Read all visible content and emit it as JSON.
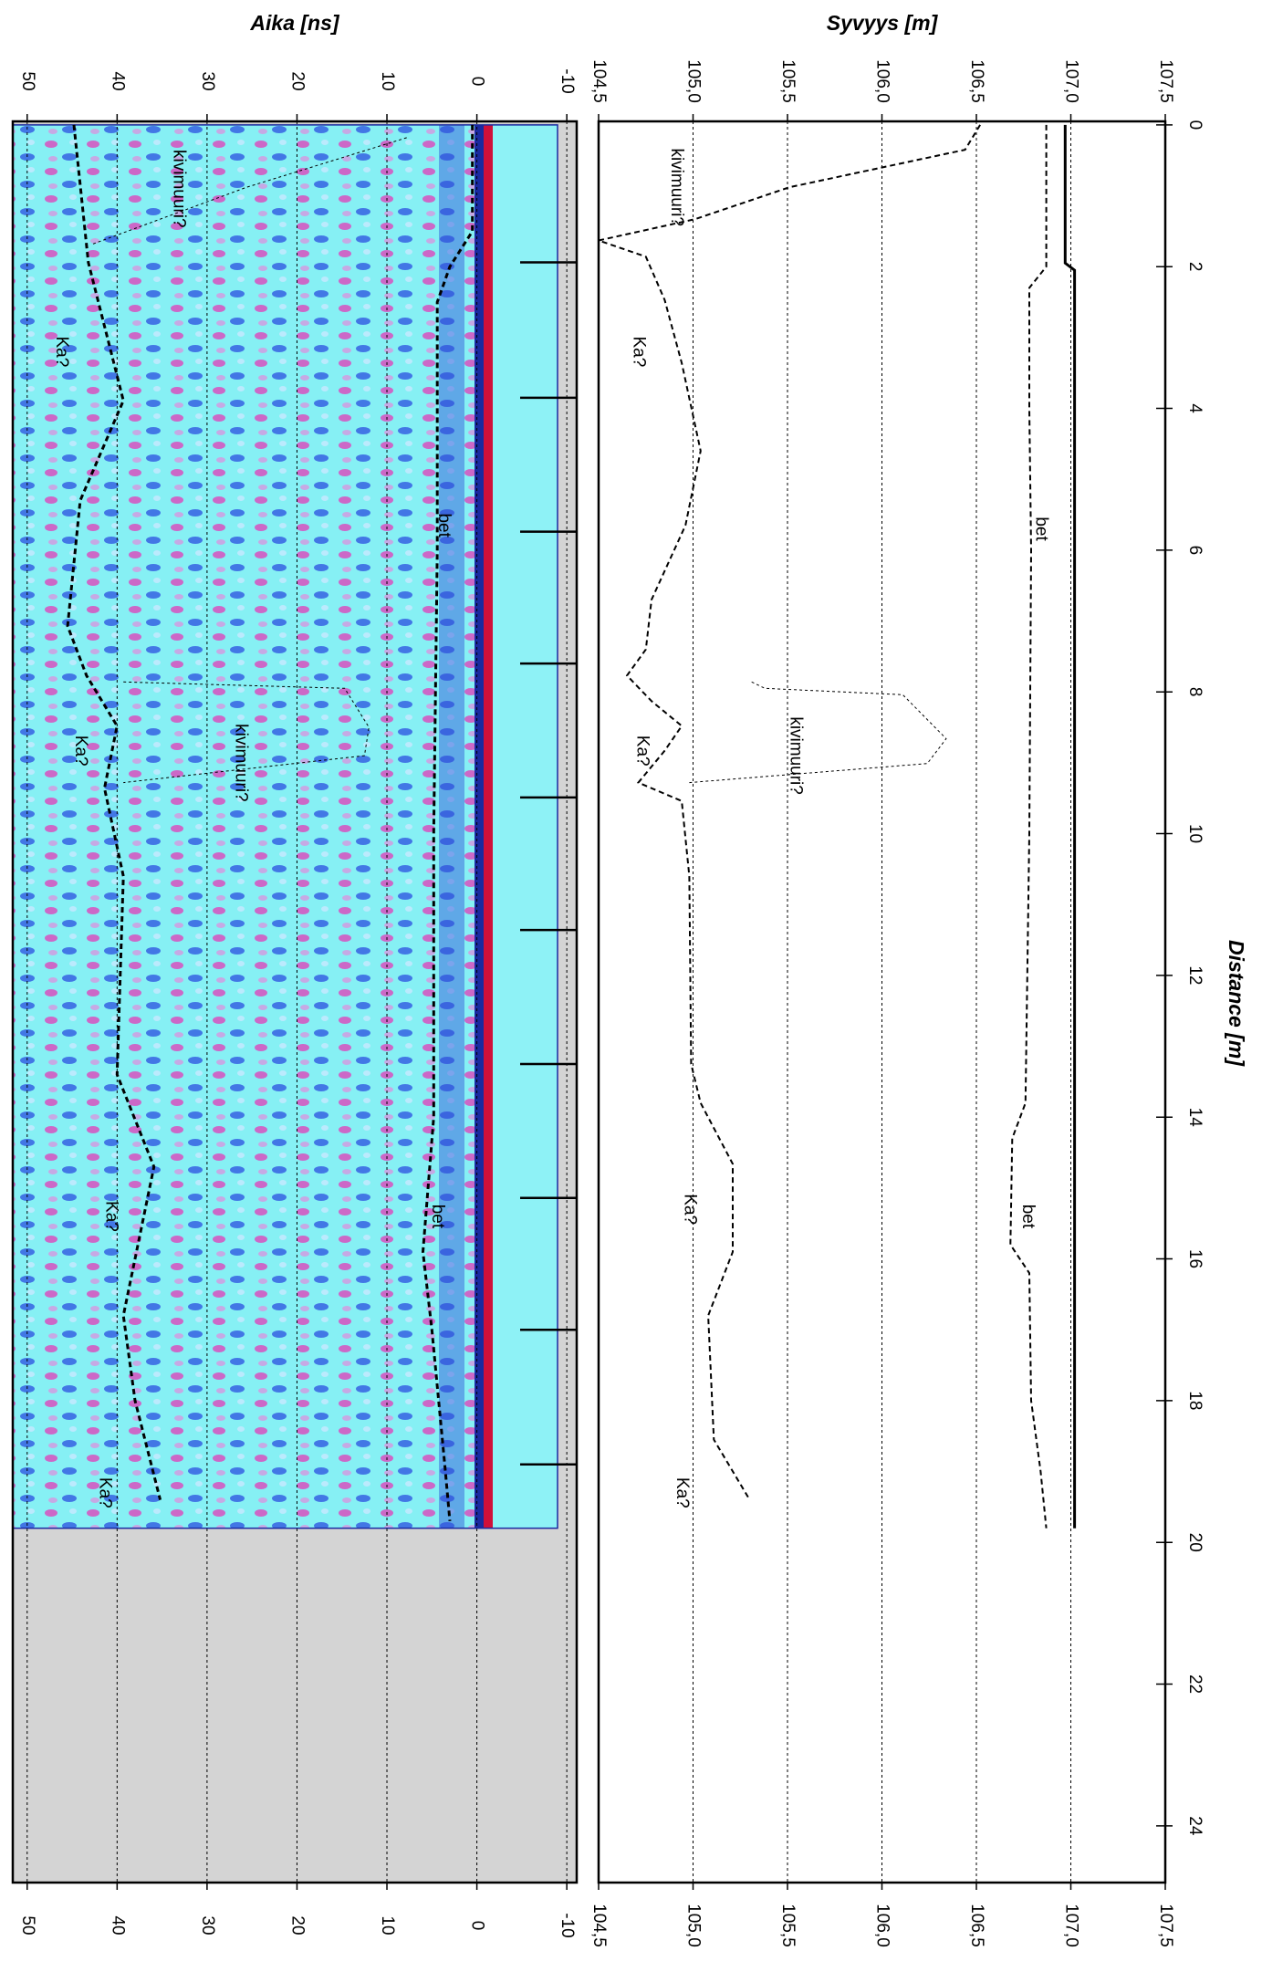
{
  "chart_data": [
    {
      "type": "radargram",
      "title": "Aika [ns]",
      "xlim": [
        -0.05,
        24.8
      ],
      "image_extent": [
        0,
        19.8
      ],
      "ylim": [
        -11.1,
        51.6
      ],
      "yticks": [
        -10,
        0,
        10,
        20,
        30,
        40,
        50
      ],
      "yreversed": true,
      "grid": true,
      "series": [
        {
          "style": "dashed",
          "width": 3,
          "color": "#000000",
          "x": [
            0,
            1.5,
            2,
            2.5,
            6,
            10,
            14,
            15.9,
            17,
            19,
            19.7
          ],
          "values": [
            0.5,
            0.5,
            3,
            4.4,
            4.4,
            4.8,
            4.8,
            6,
            5,
            3.5,
            3
          ]
        },
        {
          "style": "dashed",
          "width": 3,
          "color": "#000000",
          "x": [
            0,
            1.94,
            3.89,
            5.3,
            7.07,
            7.77,
            8.48,
            9.36,
            10.6,
            13.4,
            14.7,
            16.8,
            18.0,
            19.4
          ],
          "values": [
            44.8,
            43.2,
            39.3,
            44.1,
            45.5,
            43.4,
            40,
            41.4,
            39.3,
            40,
            35.9,
            39.3,
            38,
            35.2
          ]
        },
        {
          "style": "dashed",
          "width": 1,
          "color": "#000000",
          "x": [
            0.18,
            0.88,
            1.68
          ],
          "values": [
            7.8,
            25.6,
            42.7
          ]
        },
        {
          "style": "dashed",
          "width": 1,
          "color": "#000000",
          "x": [
            7.86,
            7.95,
            8.5,
            8.9,
            9.28
          ],
          "values": [
            39.3,
            14.7,
            12,
            12.5,
            39.3
          ]
        }
      ],
      "annotations": [
        {
          "text": "kivimuuri?",
          "x": 0.9,
          "y": 33.2
        },
        {
          "text": "Ka?",
          "x": 3.2,
          "y": 46.2
        },
        {
          "text": "bet",
          "x": 5.65,
          "y": 3.7
        },
        {
          "text": "kivimuuri?",
          "x": 9.0,
          "y": 26.3
        },
        {
          "text": "Ka?",
          "x": 8.83,
          "y": 44.1
        },
        {
          "text": "Ka?",
          "x": 15.4,
          "y": 40.7
        },
        {
          "text": "bet",
          "x": 15.4,
          "y": 4.4
        },
        {
          "text": "Ka?",
          "x": 19.3,
          "y": 41.4
        }
      ]
    },
    {
      "type": "line",
      "title": "Syvyys [m]",
      "xlabel": "Distance [m]",
      "xlim": [
        -0.05,
        24.8
      ],
      "xticks": [
        0,
        2,
        4,
        6,
        8,
        10,
        12,
        14,
        16,
        18,
        20,
        22,
        24
      ],
      "ylim": [
        104.5,
        107.5
      ],
      "yticks": [
        {
          "value": 104.5,
          "label": "104,5"
        },
        {
          "value": 105.0,
          "label": "105,0"
        },
        {
          "value": 105.5,
          "label": "105,5"
        },
        {
          "value": 106.0,
          "label": "106,0"
        },
        {
          "value": 106.5,
          "label": "106,5"
        },
        {
          "value": 107.0,
          "label": "107,0"
        },
        {
          "value": 107.5,
          "label": "107,5"
        }
      ],
      "grid": true,
      "series": [
        {
          "style": "solid",
          "width": 3,
          "color": "#000000",
          "x": [
            0,
            1.95,
            2.05,
            19.8
          ],
          "values": [
            106.97,
            106.97,
            107.02,
            107.02
          ]
        },
        {
          "style": "dashed",
          "width": 2,
          "color": "#000000",
          "x": [
            0,
            2,
            2.3,
            4,
            6,
            10,
            13.8,
            14.3,
            15.8,
            16.2,
            18,
            19,
            19.8
          ],
          "values": [
            106.87,
            106.87,
            106.78,
            106.78,
            106.79,
            106.78,
            106.76,
            106.69,
            106.68,
            106.78,
            106.79,
            106.84,
            106.87
          ]
        },
        {
          "style": "dashed",
          "width": 2,
          "color": "#000000",
          "x": [
            0,
            0.35,
            0.88,
            1.33,
            1.63,
            1.86,
            2.47,
            3.36,
            4.6,
            5.65,
            6.7,
            7.4,
            7.77,
            8.13,
            8.48,
            8.83,
            9.28,
            9.54,
            10.6,
            13.25,
            13.8,
            14.66,
            15.9,
            16.8,
            18.55,
            19.4
          ],
          "values": [
            106.52,
            106.44,
            105.51,
            105.01,
            104.5,
            104.75,
            104.85,
            104.94,
            105.04,
            104.96,
            104.78,
            104.75,
            104.65,
            104.78,
            104.94,
            104.85,
            104.71,
            104.94,
            104.98,
            104.99,
            105.04,
            105.21,
            105.21,
            105.08,
            105.11,
            105.3
          ]
        },
        {
          "style": "dashed",
          "width": 1,
          "color": "#000000",
          "x": [
            7.86,
            7.95,
            8.04,
            8.66,
            9.01,
            9.28
          ],
          "values": [
            105.31,
            105.38,
            106.11,
            106.34,
            106.24,
            104.98
          ]
        }
      ],
      "annotations": [
        {
          "text": "kivimuuri?",
          "x": 0.88,
          "y": 104.91
        },
        {
          "text": "Ka?",
          "x": 3.2,
          "y": 104.71
        },
        {
          "text": "bet",
          "x": 5.7,
          "y": 106.84
        },
        {
          "text": "kivimuuri?",
          "x": 8.9,
          "y": 105.54
        },
        {
          "text": "Ka?",
          "x": 8.83,
          "y": 104.73
        },
        {
          "text": "bet",
          "x": 15.4,
          "y": 106.77
        },
        {
          "text": "Ka?",
          "x": 15.3,
          "y": 104.98
        },
        {
          "text": "Ka?",
          "x": 19.3,
          "y": 104.94
        }
      ]
    }
  ]
}
